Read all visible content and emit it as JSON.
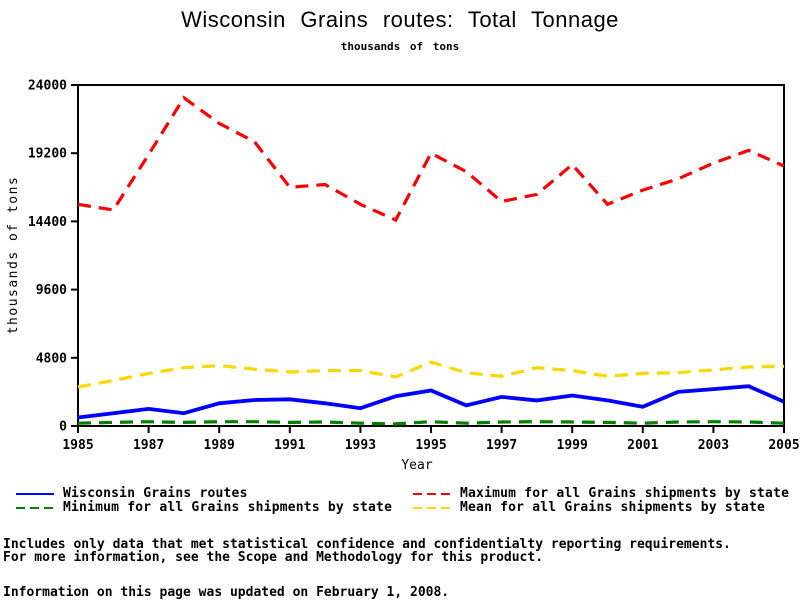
{
  "page": {
    "footnotes": [
      "Includes only data that met statistical confidence and confidentialty reporting requirements.",
      "For more information, see the Scope and Methodology for this product.",
      "Information on this page was updated on February 1, 2008."
    ]
  },
  "chart_data": {
    "type": "line",
    "title": "Wisconsin Grains routes: Total Tonnage",
    "subtitle": "thousands of tons",
    "xlabel": "Year",
    "ylabel": "thousands of tons",
    "xlim": [
      1985,
      2005
    ],
    "ylim": [
      0,
      24000
    ],
    "xticks": [
      1985,
      1987,
      1989,
      1991,
      1993,
      1995,
      1997,
      1999,
      2001,
      2003,
      2005
    ],
    "yticks": [
      0,
      4800,
      9600,
      14400,
      19200,
      24000
    ],
    "grid": false,
    "legend_position": "bottom",
    "frame_color": "#000000",
    "x": [
      1985,
      1986,
      1987,
      1988,
      1989,
      1990,
      1991,
      1992,
      1993,
      1994,
      1995,
      1996,
      1997,
      1998,
      1999,
      2000,
      2001,
      2002,
      2003,
      2004,
      2005
    ],
    "series": [
      {
        "name": "Wisconsin Grains routes",
        "color": "#0000ff",
        "dash": "solid",
        "values": [
          600,
          900,
          1200,
          900,
          1600,
          1830,
          1880,
          1600,
          1250,
          2100,
          2500,
          1450,
          2050,
          1800,
          2150,
          1800,
          1350,
          2400,
          2600,
          2800,
          1700
        ]
      },
      {
        "name": "Minimum for all Grains shipments by state",
        "color": "#008000",
        "dash": "dashed",
        "values": [
          200,
          250,
          300,
          250,
          300,
          300,
          250,
          280,
          200,
          150,
          300,
          200,
          280,
          300,
          280,
          250,
          200,
          280,
          300,
          280,
          200
        ]
      },
      {
        "name": "Maximum for all Grains shipments by state",
        "color": "#ff0000",
        "dash": "dashed",
        "values": [
          15600,
          15200,
          19100,
          23100,
          21300,
          20000,
          16800,
          17000,
          15600,
          14500,
          19200,
          17900,
          15800,
          16300,
          18400,
          15600,
          16600,
          17400,
          18500,
          19400,
          18300
        ]
      },
      {
        "name": "Mean for all Grains shipments by state",
        "color": "#ffd700",
        "dash": "dashed",
        "values": [
          2750,
          3200,
          3700,
          4100,
          4250,
          4000,
          3800,
          3900,
          3900,
          3450,
          4500,
          3750,
          3500,
          4100,
          3900,
          3500,
          3700,
          3750,
          3950,
          4150,
          4200
        ]
      }
    ]
  }
}
